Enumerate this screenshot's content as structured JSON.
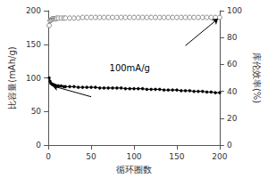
{
  "chart_data": {
    "type": "line",
    "xlabel": "循环圈数",
    "ylabel": "比容量(mAh/g)",
    "y2label": "库伦效率(%)",
    "xlim": [
      0,
      200
    ],
    "xticks": [
      0,
      50,
      100,
      150,
      200
    ],
    "ylim": [
      0,
      200
    ],
    "yticks": [
      0,
      50,
      100,
      150,
      200
    ],
    "y2lim": [
      0,
      100
    ],
    "y2ticks": [
      0,
      20,
      40,
      60,
      80,
      100
    ],
    "grid": false,
    "x": [
      1,
      2,
      3,
      4,
      5,
      6,
      7,
      8,
      9,
      10,
      12,
      15,
      18,
      20,
      25,
      30,
      35,
      40,
      45,
      50,
      55,
      60,
      65,
      70,
      75,
      80,
      85,
      90,
      95,
      100,
      105,
      110,
      115,
      120,
      125,
      130,
      135,
      140,
      145,
      150,
      155,
      160,
      165,
      170,
      175,
      180,
      185,
      190,
      195,
      200
    ],
    "series": [
      {
        "color": "#000000",
        "marker": "circle",
        "values": [
          100,
          95,
          92,
          91,
          90,
          90,
          89,
          89,
          88,
          88,
          88,
          88,
          87,
          87,
          87,
          87,
          86,
          86,
          86,
          86,
          86,
          85,
          85,
          85,
          85,
          85,
          85,
          84,
          84,
          84,
          84,
          84,
          83,
          83,
          83,
          83,
          82,
          82,
          82,
          82,
          81,
          81,
          81,
          80,
          80,
          80,
          79,
          79,
          78,
          78
        ]
      },
      {
        "color": "#888888",
        "marker": "open_circle",
        "axis": "y2",
        "values": [
          89,
          92.5,
          93,
          93.5,
          94,
          94,
          94,
          94,
          94,
          94.5,
          94.5,
          94.5,
          94.5,
          94.5,
          94.5,
          94.5,
          94.5,
          95,
          95,
          95,
          95,
          95,
          95,
          95,
          95,
          95,
          95,
          95,
          95,
          95,
          95,
          95,
          95,
          95,
          95,
          95,
          95,
          95,
          95,
          95,
          95,
          95,
          95,
          95,
          95,
          95,
          95,
          95,
          95,
          95
        ]
      }
    ],
    "annotations": [
      {
        "text": "100mA/g",
        "x": 95,
        "y": 115,
        "arrows": [
          {
            "from": [
              50,
              72
            ],
            "to": [
              5,
              88
            ]
          },
          {
            "from": [
              160,
              148
            ],
            "to": [
              198,
              188
            ]
          }
        ]
      }
    ]
  }
}
